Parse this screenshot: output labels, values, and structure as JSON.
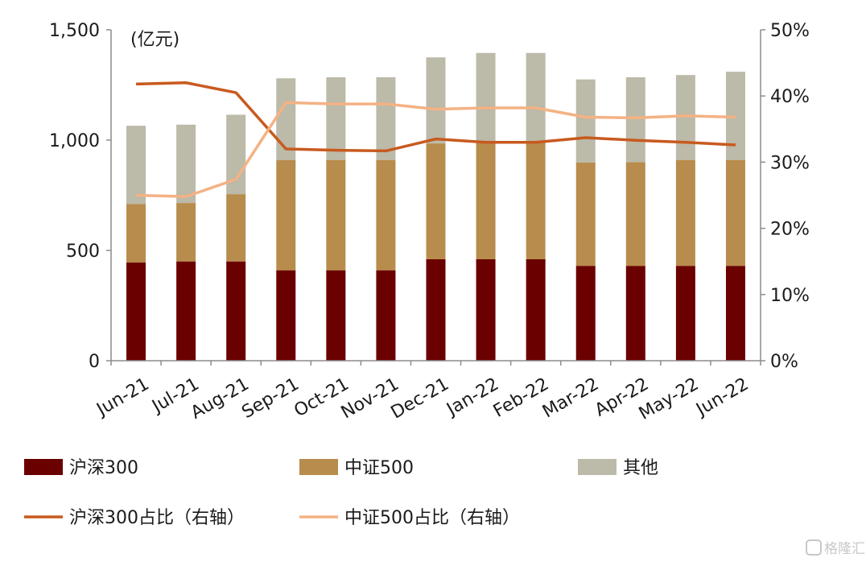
{
  "chart_data": {
    "type": "bar",
    "stacked": true,
    "unit_label": "(亿元)",
    "categories": [
      "Jun-21",
      "Jul-21",
      "Aug-21",
      "Sep-21",
      "Oct-21",
      "Nov-21",
      "Dec-21",
      "Jan-22",
      "Feb-22",
      "Mar-22",
      "Apr-22",
      "May-22",
      "Jun-22"
    ],
    "left_axis": {
      "min": 0,
      "max": 1500,
      "ticks": [
        0,
        500,
        1000,
        1500
      ],
      "tick_labels": [
        "0",
        "500",
        "1,000",
        "1,500"
      ]
    },
    "right_axis": {
      "min": 0,
      "max": 50,
      "ticks": [
        0,
        10,
        20,
        30,
        40,
        50
      ],
      "tick_labels": [
        "0%",
        "10%",
        "20%",
        "30%",
        "40%",
        "50%"
      ]
    },
    "series": [
      {
        "name": "沪深300",
        "kind": "bar",
        "color": "#6b0000",
        "values": [
          445,
          450,
          450,
          410,
          410,
          410,
          460,
          460,
          460,
          430,
          430,
          430,
          430
        ]
      },
      {
        "name": "中证500",
        "kind": "bar",
        "color": "#b88c4c",
        "values": [
          265,
          265,
          305,
          500,
          500,
          500,
          525,
          530,
          530,
          468,
          470,
          480,
          480
        ]
      },
      {
        "name": "其他",
        "kind": "bar",
        "color": "#bcbaa8",
        "values": [
          355,
          355,
          360,
          370,
          375,
          375,
          390,
          405,
          405,
          377,
          385,
          385,
          400
        ]
      },
      {
        "name": "沪深300占比（右轴）",
        "kind": "line",
        "axis": "right",
        "color": "#c85a1e",
        "values": [
          41.8,
          42.0,
          40.5,
          32.0,
          31.8,
          31.7,
          33.5,
          33.0,
          33.0,
          33.7,
          33.3,
          33.0,
          32.6
        ]
      },
      {
        "name": "中证500占比（右轴）",
        "kind": "line",
        "axis": "right",
        "color": "#f4b283",
        "values": [
          25.0,
          24.8,
          27.4,
          39.0,
          38.8,
          38.8,
          38.0,
          38.2,
          38.2,
          36.8,
          36.7,
          37.0,
          36.8
        ]
      }
    ],
    "grid": false,
    "legend_position": "bottom"
  },
  "watermark": "格隆汇"
}
